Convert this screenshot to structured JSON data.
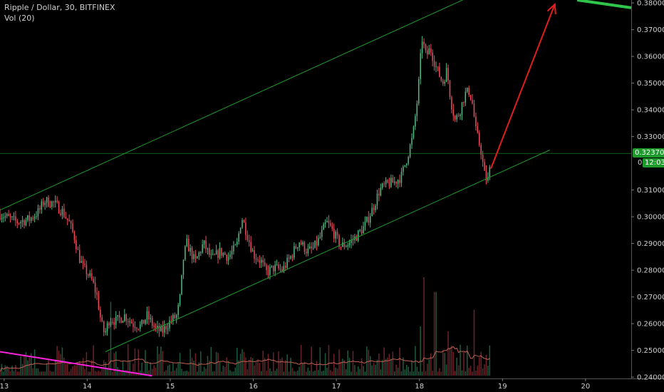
{
  "header": {
    "symbol_line": "Ripple / Dollar, 30, BITFINEX",
    "volume_line": "Vol (20)"
  },
  "price_tags": {
    "last_price": "0.32370",
    "countdown_prefix": "0",
    "countdown": "12:03"
  },
  "colors": {
    "background": "#000000",
    "up": "#53b987",
    "down": "#eb4d5c",
    "up_volume": "#1e5a3f",
    "down_volume": "#6b2329",
    "trendline": "#1e9a2c",
    "arrow": "#e01e1e",
    "volume_ma": "#c06050",
    "magenta_line": "#ff22dd",
    "tag_green": "#1e9a2c",
    "axis_text": "#cfcfcf"
  },
  "chart_data": {
    "type": "candlestick",
    "title": "Ripple / Dollar, 30, BITFINEX",
    "indicator": "Vol (20)",
    "x_ticks": [
      "13",
      "14",
      "15",
      "16",
      "17",
      "18",
      "19",
      "20"
    ],
    "y_ticks": [
      "0.38000",
      "0.37000",
      "0.36000",
      "0.35000",
      "0.34000",
      "0.33000",
      "0.31000",
      "0.30000",
      "0.29000",
      "0.28000",
      "0.27000",
      "0.26000",
      "0.25000",
      "0.24000"
    ],
    "ylim": [
      0.2395,
      0.3811
    ],
    "xlim_days": [
      12.95,
      20.55
    ],
    "last_price": 0.3237,
    "close_path": [
      [
        12.95,
        0.301
      ],
      [
        13.15,
        0.298
      ],
      [
        13.3,
        0.299
      ],
      [
        13.42,
        0.302
      ],
      [
        13.48,
        0.306
      ],
      [
        13.6,
        0.305
      ],
      [
        13.7,
        0.302
      ],
      [
        13.78,
        0.298
      ],
      [
        13.85,
        0.292
      ],
      [
        13.9,
        0.285
      ],
      [
        13.95,
        0.281
      ],
      [
        14.0,
        0.279
      ],
      [
        14.06,
        0.276
      ],
      [
        14.12,
        0.27
      ],
      [
        14.17,
        0.26
      ],
      [
        14.21,
        0.256
      ],
      [
        14.27,
        0.262
      ],
      [
        14.35,
        0.261
      ],
      [
        14.45,
        0.263
      ],
      [
        14.55,
        0.26
      ],
      [
        14.65,
        0.259
      ],
      [
        14.72,
        0.263
      ],
      [
        14.82,
        0.258
      ],
      [
        14.9,
        0.257
      ],
      [
        15.0,
        0.261
      ],
      [
        15.08,
        0.263
      ],
      [
        15.12,
        0.27
      ],
      [
        15.16,
        0.285
      ],
      [
        15.2,
        0.29
      ],
      [
        15.3,
        0.283
      ],
      [
        15.4,
        0.29
      ],
      [
        15.5,
        0.284
      ],
      [
        15.6,
        0.287
      ],
      [
        15.7,
        0.285
      ],
      [
        15.8,
        0.289
      ],
      [
        15.86,
        0.3
      ],
      [
        15.9,
        0.296
      ],
      [
        15.95,
        0.291
      ],
      [
        16.0,
        0.286
      ],
      [
        16.1,
        0.283
      ],
      [
        16.15,
        0.279
      ],
      [
        16.25,
        0.281
      ],
      [
        16.35,
        0.28
      ],
      [
        16.45,
        0.285
      ],
      [
        16.55,
        0.291
      ],
      [
        16.65,
        0.287
      ],
      [
        16.72,
        0.288
      ],
      [
        16.8,
        0.292
      ],
      [
        16.88,
        0.298
      ],
      [
        16.95,
        0.295
      ],
      [
        17.05,
        0.289
      ],
      [
        17.15,
        0.29
      ],
      [
        17.25,
        0.293
      ],
      [
        17.35,
        0.297
      ],
      [
        17.45,
        0.304
      ],
      [
        17.52,
        0.31
      ],
      [
        17.6,
        0.312
      ],
      [
        17.7,
        0.313
      ],
      [
        17.78,
        0.315
      ],
      [
        17.85,
        0.322
      ],
      [
        17.92,
        0.33
      ],
      [
        17.98,
        0.345
      ],
      [
        18.03,
        0.367
      ],
      [
        18.08,
        0.36
      ],
      [
        18.13,
        0.363
      ],
      [
        18.2,
        0.356
      ],
      [
        18.28,
        0.35
      ],
      [
        18.33,
        0.355
      ],
      [
        18.38,
        0.343
      ],
      [
        18.43,
        0.336
      ],
      [
        18.48,
        0.339
      ],
      [
        18.55,
        0.346
      ],
      [
        18.6,
        0.347
      ],
      [
        18.64,
        0.342
      ],
      [
        18.68,
        0.332
      ],
      [
        18.74,
        0.325
      ],
      [
        18.78,
        0.316
      ],
      [
        18.82,
        0.313
      ],
      [
        18.86,
        0.32
      ]
    ],
    "volume_spikes": [
      [
        18.06,
        1.0
      ],
      [
        18.19,
        0.85
      ],
      [
        18.02,
        0.5
      ],
      [
        18.34,
        0.45
      ],
      [
        18.65,
        0.67
      ],
      [
        14.28,
        0.75
      ],
      [
        14.5,
        0.32
      ],
      [
        16.18,
        0.22
      ],
      [
        17.2,
        0.25
      ],
      [
        17.95,
        0.3
      ]
    ],
    "upper_channel": [
      [
        12.95,
        0.3025
      ],
      [
        18.52,
        0.3811
      ]
    ],
    "lower_channel": [
      [
        14.22,
        0.2495
      ],
      [
        19.57,
        0.325
      ]
    ],
    "horizontal_level": 0.3237,
    "projection_arrow": [
      [
        18.86,
        0.318
      ],
      [
        19.63,
        0.3795
      ]
    ],
    "magenta_line": [
      [
        12.95,
        0.2495
      ],
      [
        14.78,
        0.2405
      ]
    ],
    "green_segment": [
      [
        19.9,
        0.3811
      ],
      [
        20.55,
        0.3782
      ]
    ]
  }
}
